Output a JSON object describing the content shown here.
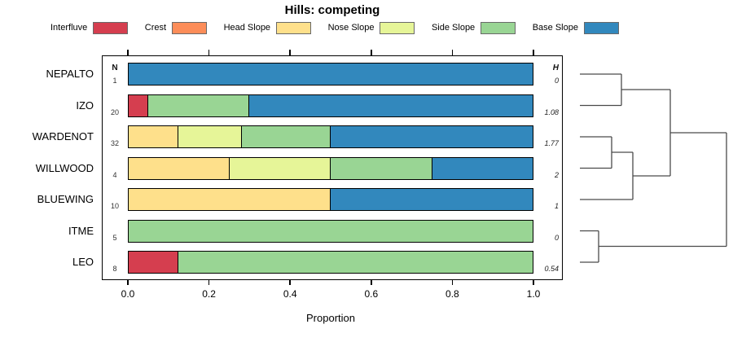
{
  "title": "Hills: competing",
  "palette": {
    "Interfluve": "#D53E4F",
    "Crest": "#FC8D59",
    "Head Slope": "#FEE08B",
    "Nose Slope": "#E6F598",
    "Side Slope": "#99D594",
    "Base Slope": "#3288BD"
  },
  "legend": {
    "items": [
      {
        "label": "Interfluve",
        "color": "#D53E4F"
      },
      {
        "label": "Crest",
        "color": "#FC8D59"
      },
      {
        "label": "Head Slope",
        "color": "#FEE08B"
      },
      {
        "label": "Nose Slope",
        "color": "#E6F598"
      },
      {
        "label": "Side Slope",
        "color": "#99D594"
      },
      {
        "label": "Base Slope",
        "color": "#3288BD"
      }
    ]
  },
  "chart_data": {
    "type": "bar",
    "orientation": "horizontal",
    "stacked": true,
    "title": "Hills: competing",
    "xlabel": "Proportion",
    "xlim": [
      0,
      1
    ],
    "x_ticks": [
      0.0,
      0.2,
      0.4,
      0.6,
      0.8,
      1.0
    ],
    "x_tick_labels": [
      "0.0",
      "0.2",
      "0.4",
      "0.6",
      "0.8",
      "1.0"
    ],
    "series_names": [
      "Interfluve",
      "Crest",
      "Head Slope",
      "Nose Slope",
      "Side Slope",
      "Base Slope"
    ],
    "left_column": {
      "header": "N"
    },
    "right_column": {
      "header": "H"
    },
    "categories": [
      "NEPALTO",
      "IZO",
      "WARDENOT",
      "WILLWOOD",
      "BLUEWING",
      "ITME",
      "LEO"
    ],
    "rows": [
      {
        "category": "NEPALTO",
        "n": "1",
        "h": "0",
        "segments": [
          {
            "name": "Base Slope",
            "value": 1.0
          }
        ]
      },
      {
        "category": "IZO",
        "n": "20",
        "h": "1.08",
        "segments": [
          {
            "name": "Interfluve",
            "value": 0.05
          },
          {
            "name": "Side Slope",
            "value": 0.25
          },
          {
            "name": "Base Slope",
            "value": 0.7
          }
        ]
      },
      {
        "category": "WARDENOT",
        "n": "32",
        "h": "1.77",
        "segments": [
          {
            "name": "Head Slope",
            "value": 0.125
          },
          {
            "name": "Nose Slope",
            "value": 0.15625
          },
          {
            "name": "Side Slope",
            "value": 0.21875
          },
          {
            "name": "Base Slope",
            "value": 0.5
          }
        ]
      },
      {
        "category": "WILLWOOD",
        "n": "4",
        "h": "2",
        "segments": [
          {
            "name": "Head Slope",
            "value": 0.25
          },
          {
            "name": "Nose Slope",
            "value": 0.25
          },
          {
            "name": "Side Slope",
            "value": 0.25
          },
          {
            "name": "Base Slope",
            "value": 0.25
          }
        ]
      },
      {
        "category": "BLUEWING",
        "n": "10",
        "h": "1",
        "segments": [
          {
            "name": "Head Slope",
            "value": 0.5
          },
          {
            "name": "Base Slope",
            "value": 0.5
          }
        ]
      },
      {
        "category": "ITME",
        "n": "5",
        "h": "0",
        "segments": [
          {
            "name": "Side Slope",
            "value": 1.0
          }
        ]
      },
      {
        "category": "LEO",
        "n": "8",
        "h": "0.54",
        "segments": [
          {
            "name": "Interfluve",
            "value": 0.125
          },
          {
            "name": "Side Slope",
            "value": 0.875
          }
        ]
      }
    ],
    "dendrogram": {
      "line_color": "#4a4a4a",
      "segments": [
        {
          "x1": 712,
          "y1": 91,
          "x2": 763,
          "y2": 91
        },
        {
          "x1": 712,
          "y1": 129.5,
          "x2": 763,
          "y2": 129.5
        },
        {
          "x1": 763,
          "y1": 91,
          "x2": 763,
          "y2": 129.5
        },
        {
          "x1": 763,
          "y1": 110,
          "x2": 823,
          "y2": 110
        },
        {
          "x1": 712,
          "y1": 168,
          "x2": 751,
          "y2": 168
        },
        {
          "x1": 712,
          "y1": 206.5,
          "x2": 751,
          "y2": 206.5
        },
        {
          "x1": 751,
          "y1": 168,
          "x2": 751,
          "y2": 206.5
        },
        {
          "x1": 751,
          "y1": 187,
          "x2": 777,
          "y2": 187
        },
        {
          "x1": 712,
          "y1": 245,
          "x2": 777,
          "y2": 245
        },
        {
          "x1": 777,
          "y1": 187,
          "x2": 777,
          "y2": 245
        },
        {
          "x1": 777,
          "y1": 216,
          "x2": 823,
          "y2": 216
        },
        {
          "x1": 823,
          "y1": 110,
          "x2": 823,
          "y2": 216
        },
        {
          "x1": 823,
          "y1": 163,
          "x2": 892,
          "y2": 163
        },
        {
          "x1": 712,
          "y1": 283.5,
          "x2": 735,
          "y2": 283.5
        },
        {
          "x1": 712,
          "y1": 322,
          "x2": 735,
          "y2": 322
        },
        {
          "x1": 735,
          "y1": 283.5,
          "x2": 735,
          "y2": 322
        },
        {
          "x1": 735,
          "y1": 302.5,
          "x2": 892,
          "y2": 302.5
        },
        {
          "x1": 892,
          "y1": 163,
          "x2": 892,
          "y2": 302.5
        }
      ]
    }
  }
}
